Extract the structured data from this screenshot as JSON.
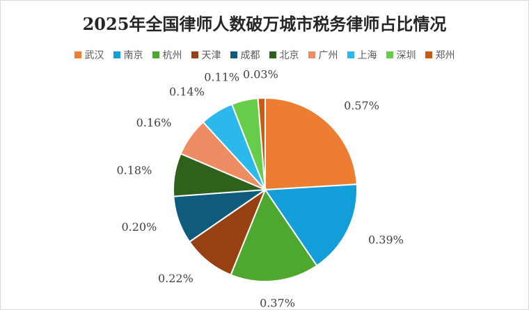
{
  "chart_data": {
    "type": "pie",
    "title": "2025年全国律师人数破万城市税务律师占比情况",
    "legend_position": "top",
    "slices": [
      {
        "name": "武汉",
        "value": 0.57,
        "label": "0.57%",
        "color": "#ED7D31"
      },
      {
        "name": "南京",
        "value": 0.39,
        "label": "0.39%",
        "color": "#129ED8"
      },
      {
        "name": "杭州",
        "value": 0.37,
        "label": "0.37%",
        "color": "#4EA72E"
      },
      {
        "name": "天津",
        "value": 0.22,
        "label": "0.22%",
        "color": "#974012"
      },
      {
        "name": "成都",
        "value": 0.2,
        "label": "0.20%",
        "color": "#0E5B7E"
      },
      {
        "name": "北京",
        "value": 0.18,
        "label": "0.18%",
        "color": "#2E611B"
      },
      {
        "name": "广州",
        "value": 0.16,
        "label": "0.16%",
        "color": "#EE8C64"
      },
      {
        "name": "上海",
        "value": 0.14,
        "label": "0.14%",
        "color": "#2BB9EB"
      },
      {
        "name": "深圳",
        "value": 0.11,
        "label": "0.11%",
        "color": "#66CC4A"
      },
      {
        "name": "郑州",
        "value": 0.03,
        "label": "0.03%",
        "color": "#C85A14"
      }
    ]
  }
}
